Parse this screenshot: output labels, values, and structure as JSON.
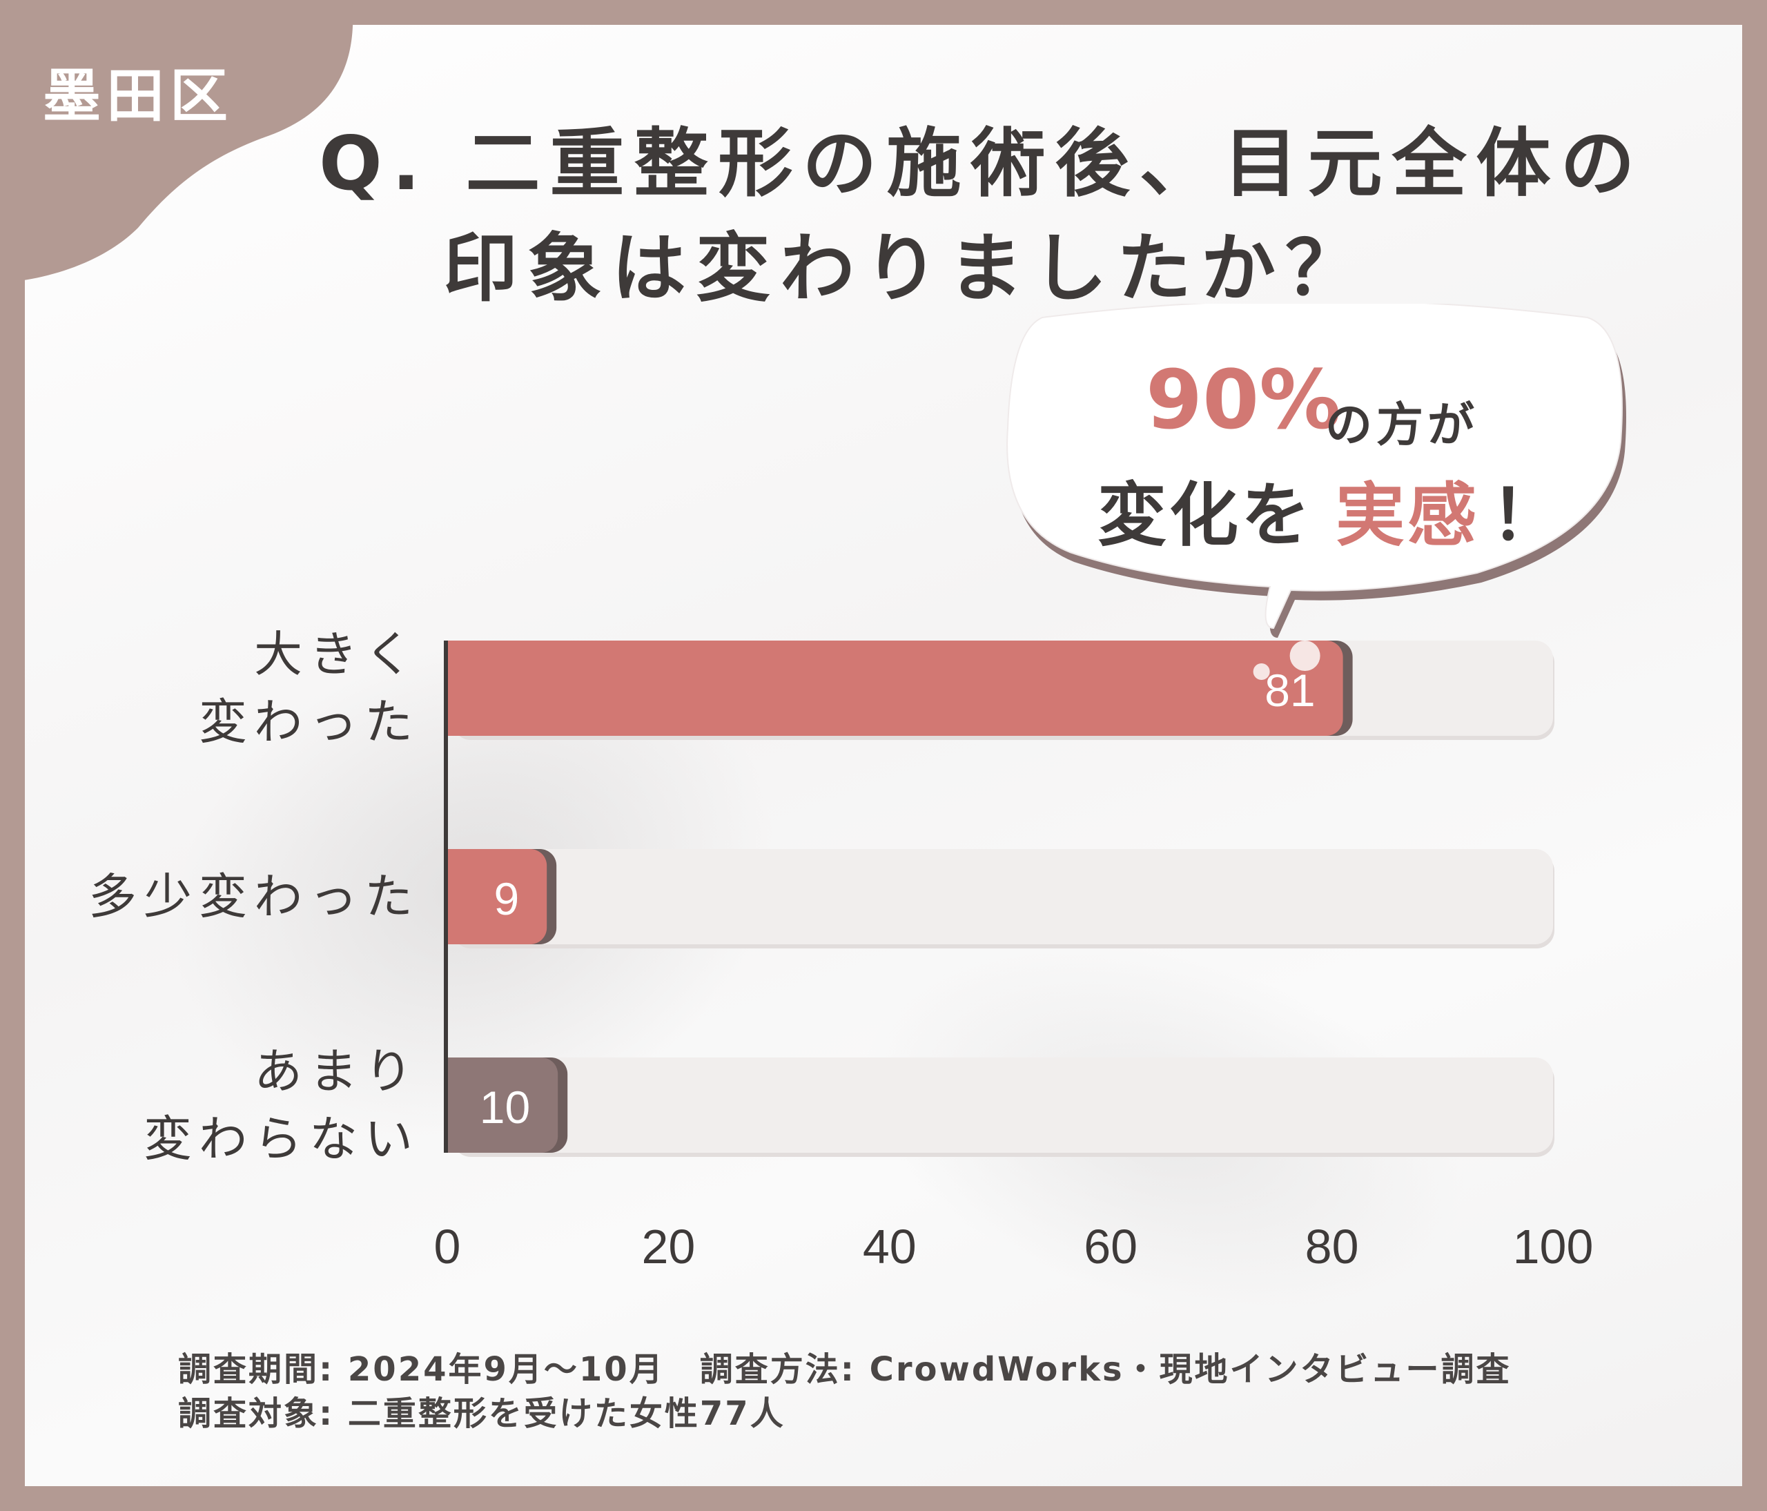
{
  "region": "墨田区",
  "title": {
    "line1": "Q. 二重整形の施術後、目元全体の",
    "line2": "印象は変わりましたか？"
  },
  "callout": {
    "percent": "90%",
    "line1_rest": "の方が",
    "line2_a": "変化を",
    "line2_b": "実感",
    "line2_c": "！"
  },
  "colors": {
    "accent": "#d27873",
    "muted": "#8e7776",
    "track": "#f1eeed",
    "text": "#3e3a39",
    "frame": "#b39a93"
  },
  "chart_data": {
    "type": "bar",
    "orientation": "horizontal",
    "categories": [
      "大きく\n変わった",
      "多少変わった",
      "あまり\n変わらない"
    ],
    "values": [
      81,
      9,
      10
    ],
    "value_labels": [
      "81",
      "9",
      "10"
    ],
    "bar_colors": [
      "#d27873",
      "#d27873",
      "#8e7776"
    ],
    "xlim": [
      0,
      100
    ],
    "xticks": [
      "0",
      "20",
      "40",
      "60",
      "80",
      "100"
    ],
    "grid": false
  },
  "footnote": {
    "line1": "調査期間: 2024年9月〜10月　調査方法: CrowdWorks・現地インタビュー調査",
    "line2": "調査対象: 二重整形を受けた女性77人"
  }
}
